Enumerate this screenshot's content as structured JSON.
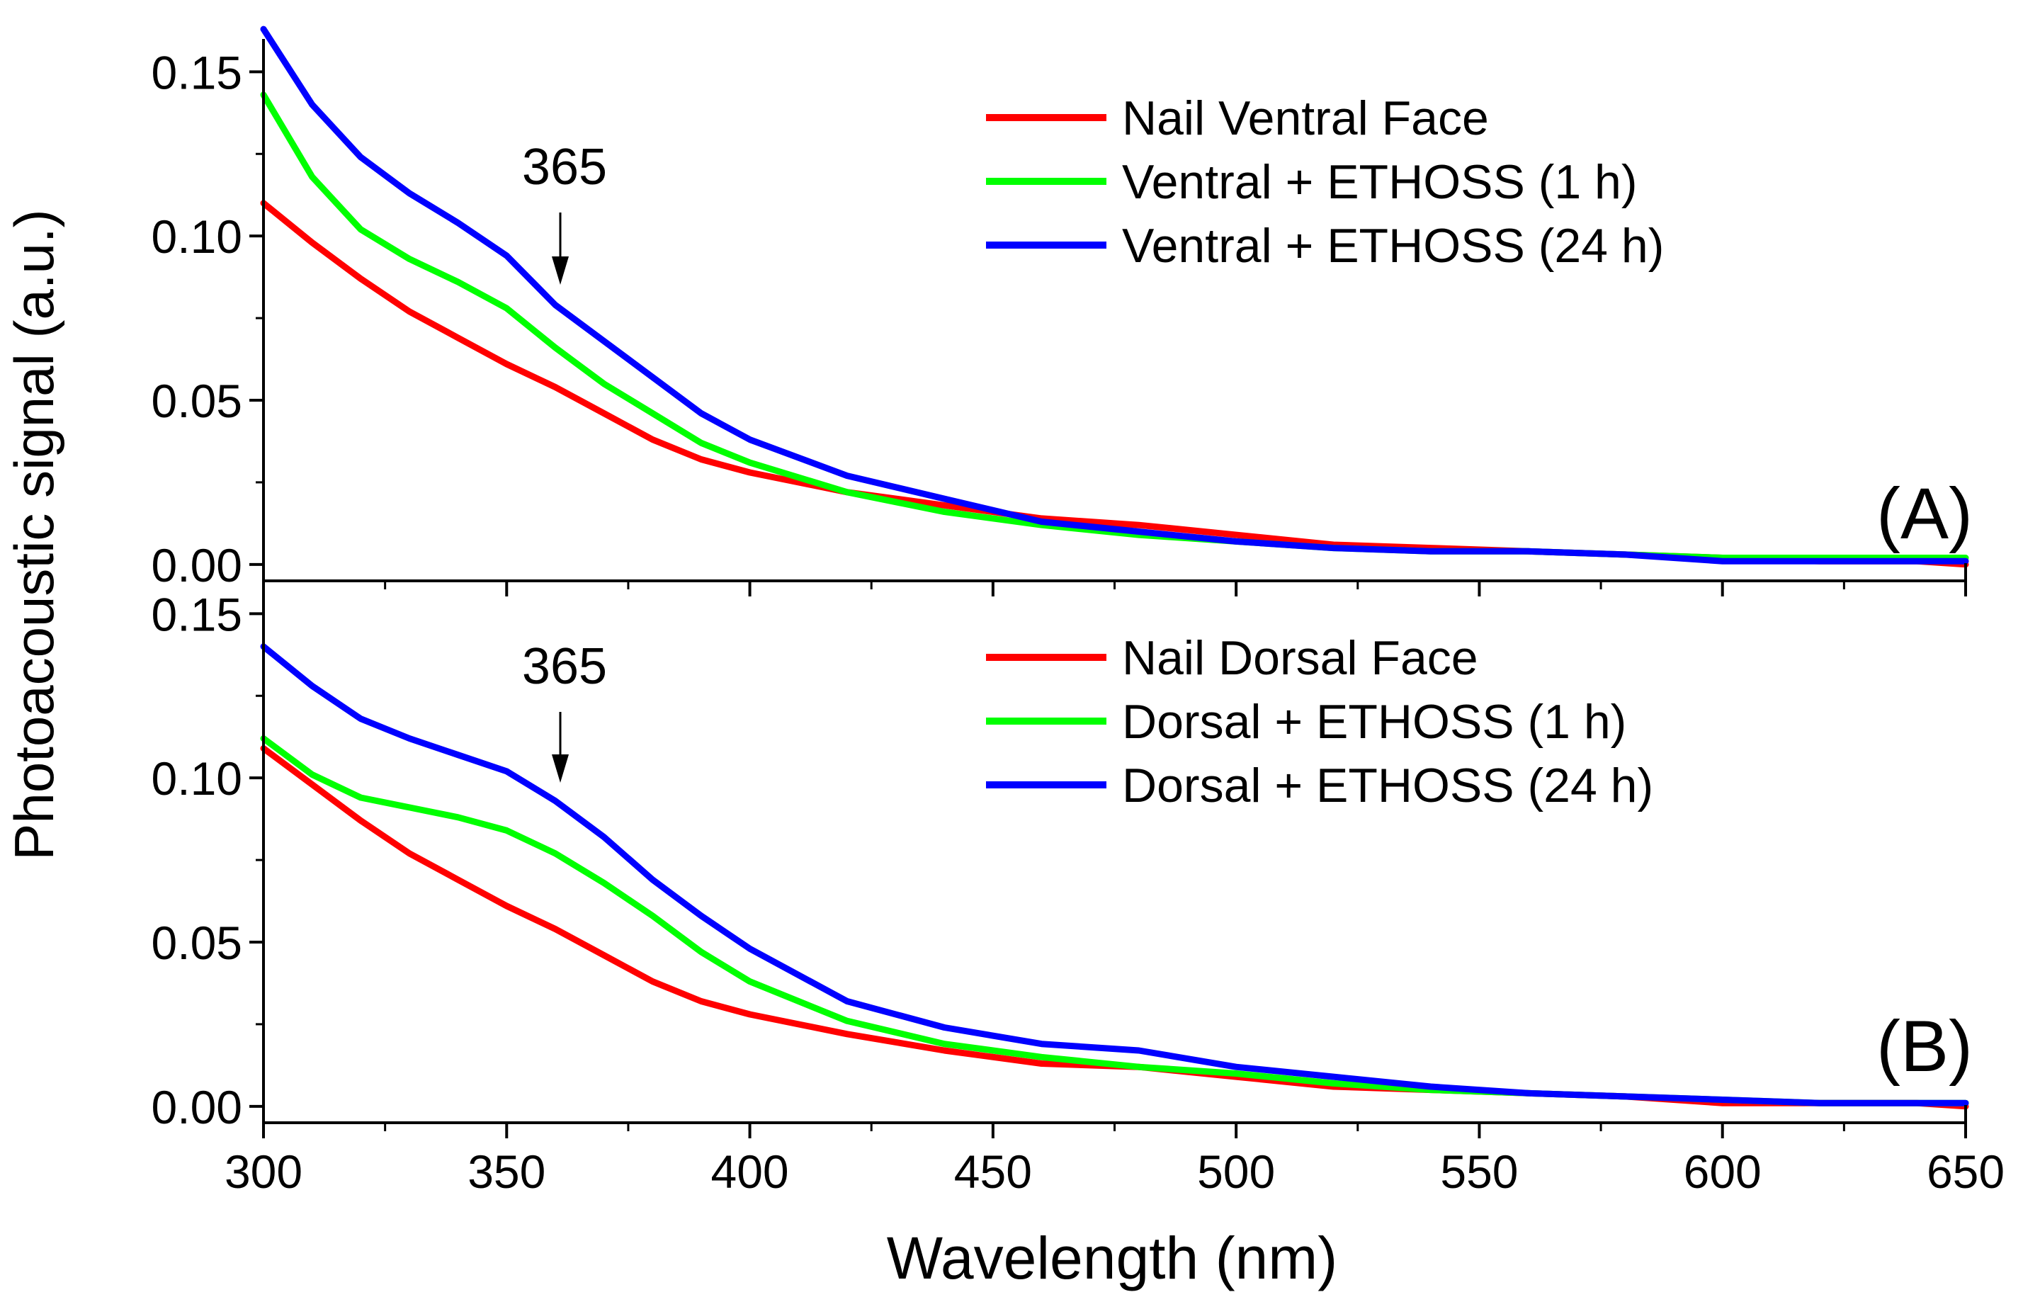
{
  "figure": {
    "ylabel": "Photoacoustic signal (a.u.)",
    "xlabel": "Wavelength (nm)",
    "xlim": [
      300,
      650
    ],
    "xticks": [
      300,
      350,
      400,
      450,
      500,
      550,
      600,
      650
    ],
    "xtick_labels": [
      "300",
      "350",
      "400",
      "450",
      "500",
      "550",
      "600",
      "650"
    ]
  },
  "chart_data": [
    {
      "type": "line",
      "panel_label": "(A)",
      "xlabel": "Wavelength (nm)",
      "ylabel": "Photoacoustic signal (a.u.)",
      "xlim": [
        300,
        650
      ],
      "ylim": [
        -0.005,
        0.16
      ],
      "yticks": [
        0,
        0.05,
        0.1,
        0.15
      ],
      "ytick_labels": [
        "0.00",
        "0.05",
        "0.10",
        "0.15"
      ],
      "legend_position": "top-right",
      "annotation": {
        "text": "365",
        "x": 362,
        "y": 0.084
      },
      "x": [
        300,
        310,
        320,
        330,
        340,
        350,
        360,
        370,
        380,
        390,
        400,
        420,
        440,
        460,
        480,
        500,
        520,
        540,
        560,
        580,
        600,
        620,
        640,
        650
      ],
      "series": [
        {
          "name": "Nail Ventral Face",
          "color": "#ff0000",
          "values": [
            0.11,
            0.098,
            0.087,
            0.077,
            0.069,
            0.061,
            0.054,
            0.046,
            0.038,
            0.032,
            0.028,
            0.022,
            0.018,
            0.014,
            0.012,
            0.009,
            0.006,
            0.005,
            0.004,
            0.003,
            0.002,
            0.001,
            0.001,
            0.0
          ]
        },
        {
          "name": "Ventral + ETHOSS (1 h)",
          "color": "#00ff00",
          "values": [
            0.143,
            0.118,
            0.102,
            0.093,
            0.086,
            0.078,
            0.066,
            0.055,
            0.046,
            0.037,
            0.031,
            0.022,
            0.016,
            0.012,
            0.009,
            0.007,
            0.005,
            0.004,
            0.004,
            0.003,
            0.002,
            0.002,
            0.002,
            0.002
          ]
        },
        {
          "name": "Ventral + ETHOSS (24 h)",
          "color": "#0000ff",
          "values": [
            0.163,
            0.14,
            0.124,
            0.113,
            0.104,
            0.094,
            0.079,
            0.068,
            0.057,
            0.046,
            0.038,
            0.027,
            0.02,
            0.013,
            0.01,
            0.007,
            0.005,
            0.004,
            0.004,
            0.003,
            0.001,
            0.001,
            0.001,
            0.001
          ]
        }
      ]
    },
    {
      "type": "line",
      "panel_label": "(B)",
      "xlabel": "Wavelength (nm)",
      "ylabel": "Photoacoustic signal (a.u.)",
      "xlim": [
        300,
        650
      ],
      "ylim": [
        -0.005,
        0.16
      ],
      "yticks": [
        0,
        0.05,
        0.1,
        0.15
      ],
      "ytick_labels": [
        "0.00",
        "0.05",
        "0.10",
        "0.15"
      ],
      "legend_position": "top-right",
      "annotation": {
        "text": "365",
        "x": 362,
        "y": 0.098
      },
      "x": [
        300,
        310,
        320,
        330,
        340,
        350,
        360,
        370,
        380,
        390,
        400,
        420,
        440,
        460,
        480,
        500,
        520,
        540,
        560,
        580,
        600,
        620,
        640,
        650
      ],
      "series": [
        {
          "name": "Nail Dorsal Face",
          "color": "#ff0000",
          "values": [
            0.109,
            0.098,
            0.087,
            0.077,
            0.069,
            0.061,
            0.054,
            0.046,
            0.038,
            0.032,
            0.028,
            0.022,
            0.017,
            0.013,
            0.012,
            0.009,
            0.006,
            0.005,
            0.004,
            0.003,
            0.001,
            0.001,
            0.001,
            0.0
          ]
        },
        {
          "name": "Dorsal + ETHOSS (1 h)",
          "color": "#00ff00",
          "values": [
            0.112,
            0.101,
            0.094,
            0.091,
            0.088,
            0.084,
            0.077,
            0.068,
            0.058,
            0.047,
            0.038,
            0.026,
            0.019,
            0.015,
            0.012,
            0.01,
            0.007,
            0.005,
            0.004,
            0.003,
            0.002,
            0.001,
            0.001,
            0.001
          ]
        },
        {
          "name": "Dorsal + ETHOSS (24 h)",
          "color": "#0000ff",
          "values": [
            0.14,
            0.128,
            0.118,
            0.112,
            0.107,
            0.102,
            0.093,
            0.082,
            0.069,
            0.058,
            0.048,
            0.032,
            0.024,
            0.019,
            0.017,
            0.012,
            0.009,
            0.006,
            0.004,
            0.003,
            0.002,
            0.001,
            0.001,
            0.001
          ]
        }
      ]
    }
  ]
}
